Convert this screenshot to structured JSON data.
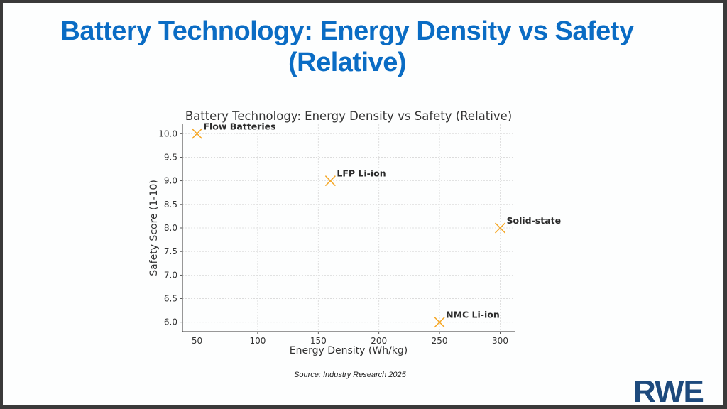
{
  "slide": {
    "title_line1": "Battery Technology: Energy Density vs Safety",
    "title_line2": "(Relative)",
    "source": "Source: Industry Research 2025",
    "logo": "RWE",
    "title_color": "#0a6cc4",
    "logo_color": "#1d4a7d"
  },
  "chart_data": {
    "type": "scatter",
    "title": "Battery Technology: Energy Density vs Safety (Relative)",
    "xlabel": "Energy Density (Wh/kg)",
    "ylabel": "Safety Score (1-10)",
    "xlim": [
      38,
      312
    ],
    "ylim": [
      5.8,
      10.2
    ],
    "xticks": [
      50,
      100,
      150,
      200,
      250,
      300
    ],
    "yticks": [
      6.0,
      6.5,
      7.0,
      7.5,
      8.0,
      8.5,
      9.0,
      9.5,
      10.0
    ],
    "xtick_labels": [
      "50",
      "100",
      "150",
      "200",
      "250",
      "300"
    ],
    "ytick_labels": [
      "6.0",
      "6.5",
      "7.0",
      "7.5",
      "8.0",
      "8.5",
      "9.0",
      "9.5",
      "10.0"
    ],
    "grid": true,
    "marker": "x",
    "marker_color": "#f5a623",
    "points": [
      {
        "label": "LFP Li-ion",
        "x": 160,
        "y": 9.0
      },
      {
        "label": "NMC Li-ion",
        "x": 250,
        "y": 6.0
      },
      {
        "label": "Solid-state",
        "x": 300,
        "y": 8.0
      },
      {
        "label": "Flow Batteries",
        "x": 50,
        "y": 10.0
      }
    ]
  }
}
